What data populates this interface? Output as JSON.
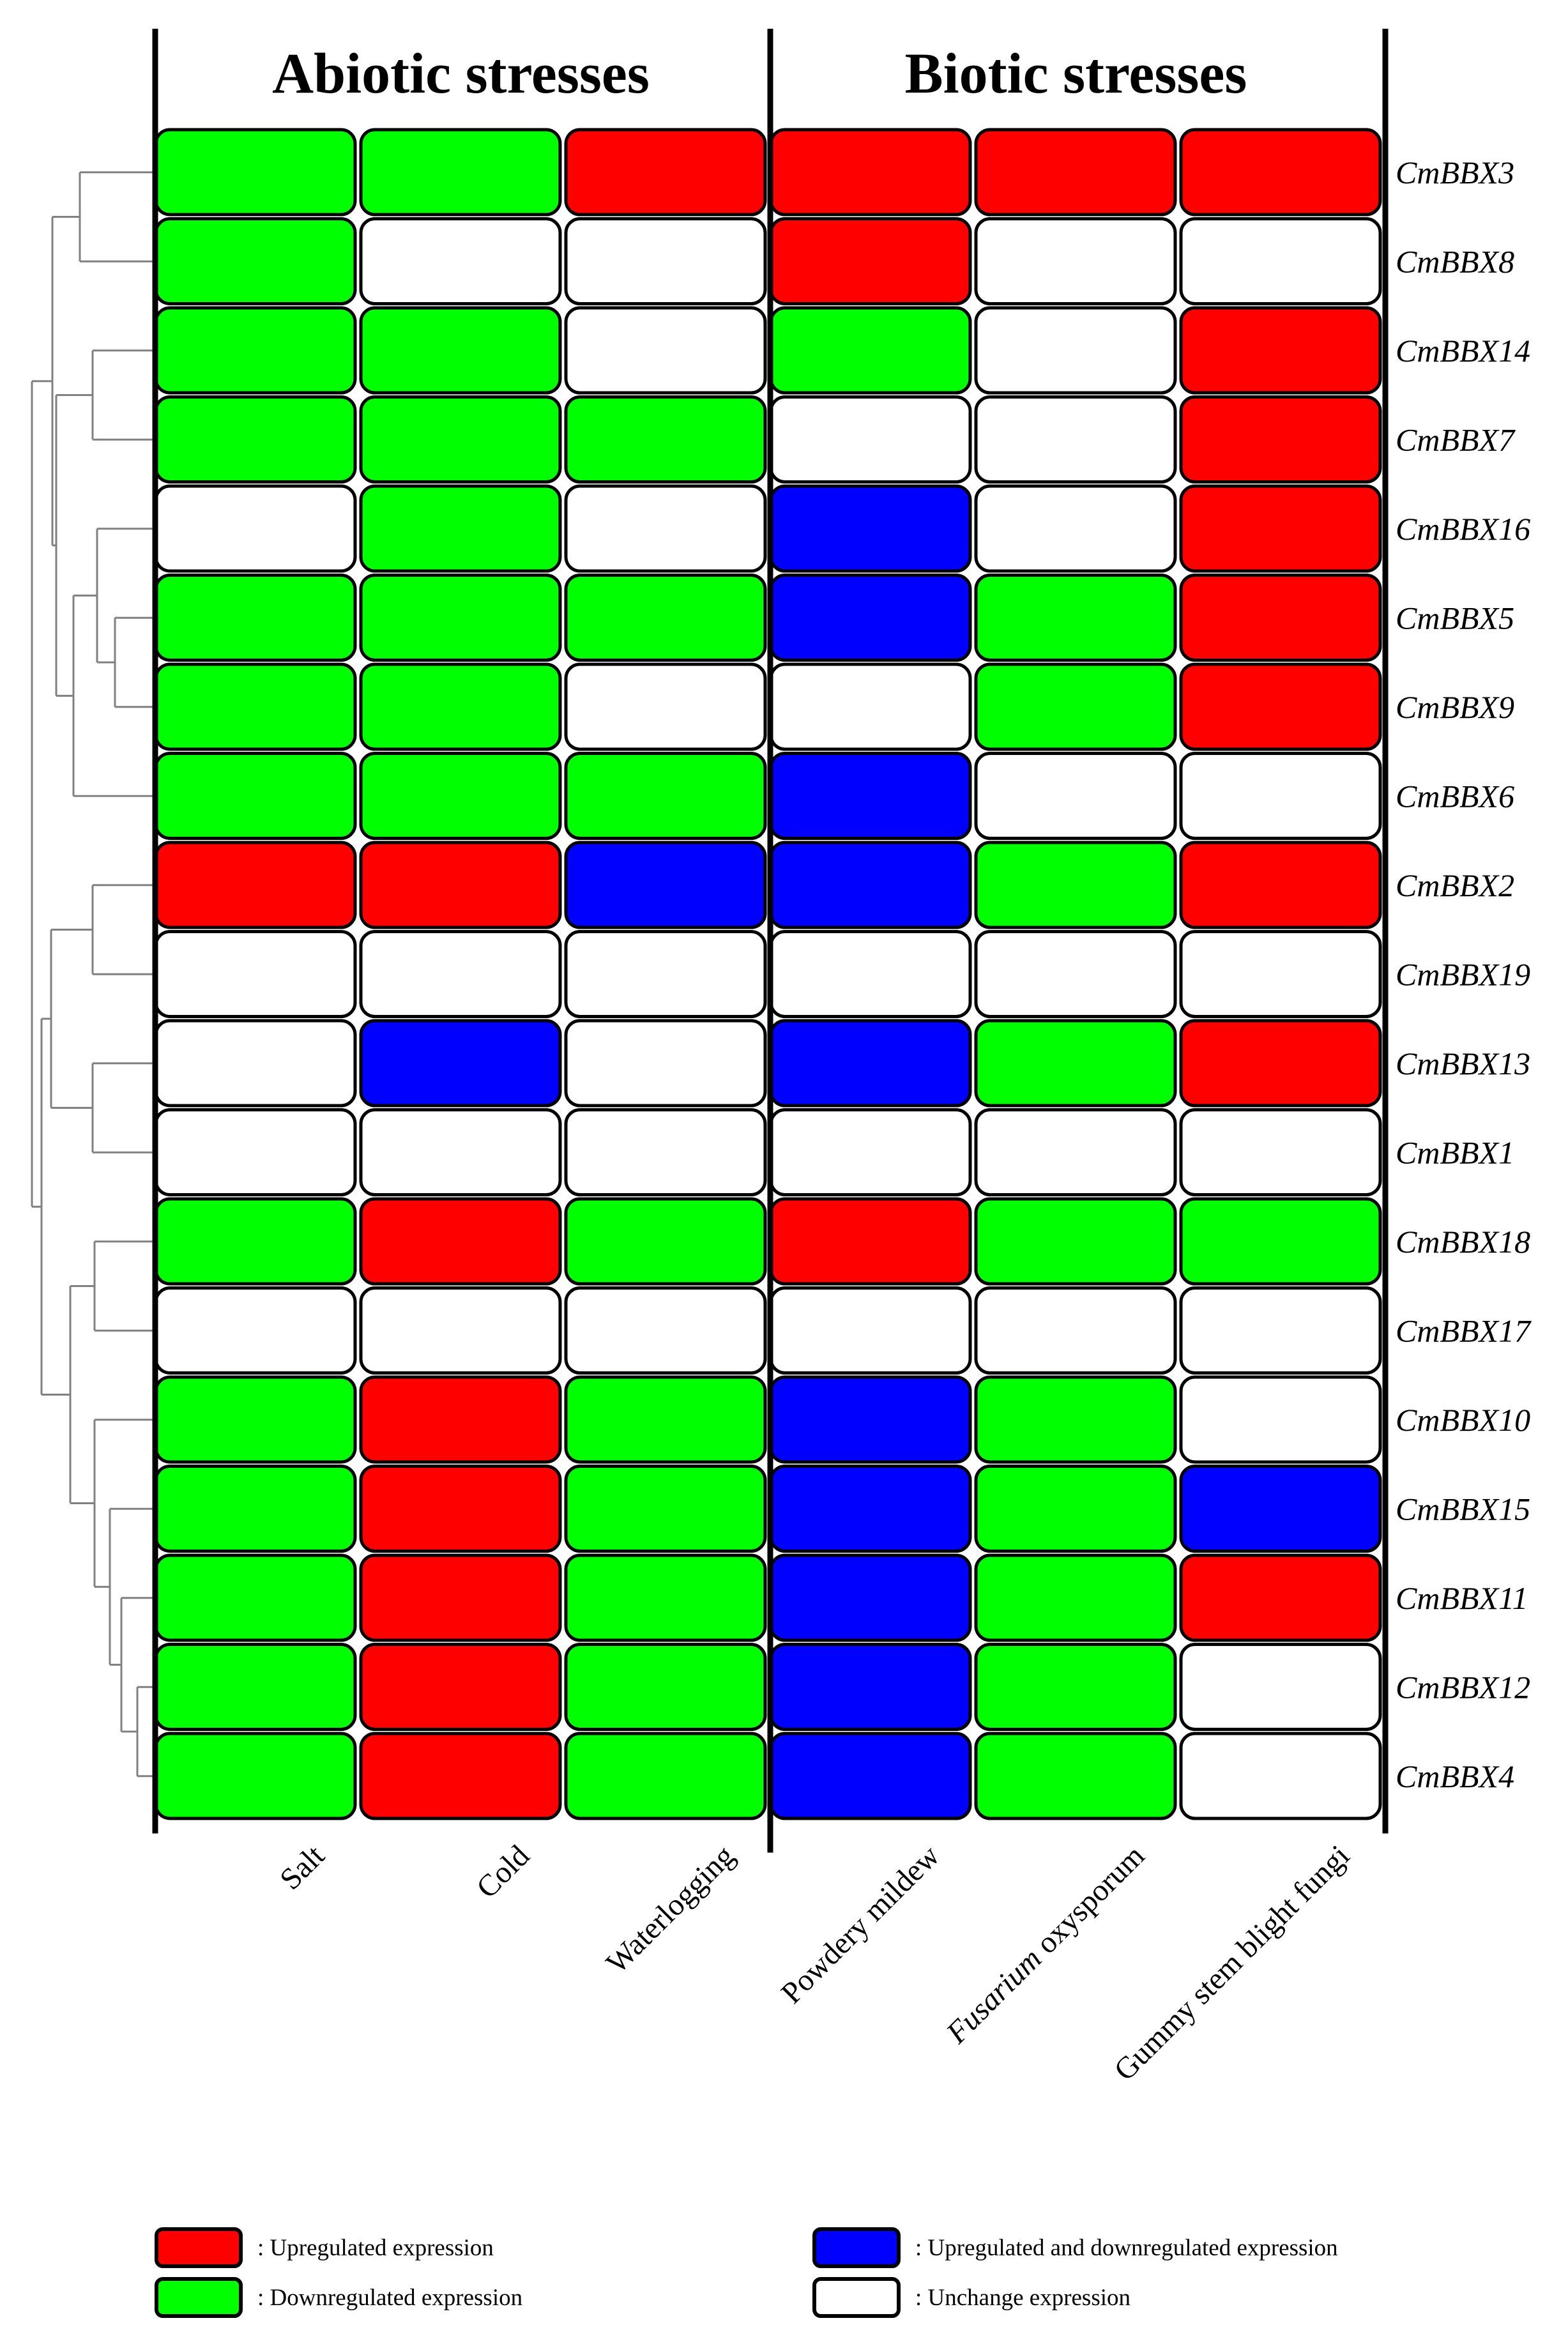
{
  "chart_data": {
    "type": "heatmap",
    "groups": [
      {
        "label": "Abiotic stresses",
        "columns": [
          "Salt",
          "Cold",
          "Waterlogging"
        ]
      },
      {
        "label": "Biotic stresses",
        "columns": [
          "Powdery mildew",
          "Fusarium oxysporum",
          "Gummy stem blight fungi"
        ]
      }
    ],
    "columns": [
      "Salt",
      "Cold",
      "Waterlogging",
      "Powdery mildew",
      "Fusarium oxysporum",
      "Gummy stem blight fungi"
    ],
    "rows": [
      "CmBBX3",
      "CmBBX8",
      "CmBBX14",
      "CmBBX7",
      "CmBBX16",
      "CmBBX5",
      "CmBBX9",
      "CmBBX6",
      "CmBBX2",
      "CmBBX19",
      "CmBBX13",
      "CmBBX1",
      "CmBBX18",
      "CmBBX17",
      "CmBBX10",
      "CmBBX15",
      "CmBBX11",
      "CmBBX12",
      "CmBBX4"
    ],
    "cells": [
      [
        "down",
        "down",
        "up",
        "up",
        "up",
        "up"
      ],
      [
        "down",
        "unchanged",
        "unchanged",
        "up",
        "unchanged",
        "unchanged"
      ],
      [
        "down",
        "down",
        "unchanged",
        "down",
        "unchanged",
        "up"
      ],
      [
        "down",
        "down",
        "down",
        "unchanged",
        "unchanged",
        "up"
      ],
      [
        "unchanged",
        "down",
        "unchanged",
        "both",
        "unchanged",
        "up"
      ],
      [
        "down",
        "down",
        "down",
        "both",
        "down",
        "up"
      ],
      [
        "down",
        "down",
        "unchanged",
        "unchanged",
        "down",
        "up"
      ],
      [
        "down",
        "down",
        "down",
        "both",
        "unchanged",
        "unchanged"
      ],
      [
        "up",
        "up",
        "both",
        "both",
        "down",
        "up"
      ],
      [
        "unchanged",
        "unchanged",
        "unchanged",
        "unchanged",
        "unchanged",
        "unchanged"
      ],
      [
        "unchanged",
        "both",
        "unchanged",
        "both",
        "down",
        "up"
      ],
      [
        "unchanged",
        "unchanged",
        "unchanged",
        "unchanged",
        "unchanged",
        "unchanged"
      ],
      [
        "down",
        "up",
        "down",
        "up",
        "down",
        "down"
      ],
      [
        "unchanged",
        "unchanged",
        "unchanged",
        "unchanged",
        "unchanged",
        "unchanged"
      ],
      [
        "down",
        "up",
        "down",
        "both",
        "down",
        "unchanged"
      ],
      [
        "down",
        "up",
        "down",
        "both",
        "down",
        "both"
      ],
      [
        "down",
        "up",
        "down",
        "both",
        "down",
        "up"
      ],
      [
        "down",
        "up",
        "down",
        "both",
        "down",
        "unchanged"
      ],
      [
        "down",
        "up",
        "down",
        "both",
        "down",
        "unchanged"
      ]
    ],
    "legend": [
      {
        "key": "up",
        "label": ": Upregulated expression",
        "color": "#ff0000"
      },
      {
        "key": "down",
        "label": ": Downregulated expression",
        "color": "#00ff00"
      },
      {
        "key": "both",
        "label": ": Upregulated and downregulated expression",
        "color": "#0000ff"
      },
      {
        "key": "unchanged",
        "label": ": Unchange expression",
        "color": "#ffffff"
      }
    ],
    "italic_label_parts": {
      "Fusarium oxysporum": "Fusarium"
    },
    "dendrogram": "hierarchical clustering tree of genes (left)"
  }
}
